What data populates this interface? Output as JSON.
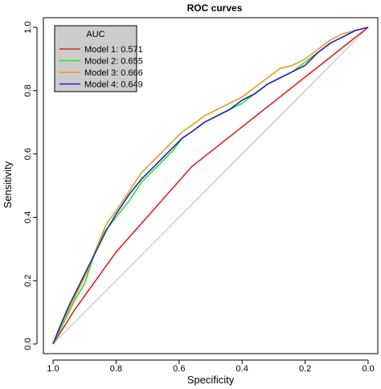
{
  "chart_data": {
    "type": "line",
    "title": "ROC curves",
    "xlabel": "Specificity",
    "ylabel": "Sensitivity",
    "xlim": [
      1.0,
      0.0
    ],
    "ylim": [
      0.0,
      1.0
    ],
    "x_reversed": true,
    "x_ticks": [
      "1.0",
      "0.8",
      "0.6",
      "0.4",
      "0.2",
      "0.0"
    ],
    "y_ticks": [
      "0.0",
      "0.2",
      "0.4",
      "0.6",
      "0.8",
      "1.0"
    ],
    "grid": false,
    "legend": {
      "title": "AUC",
      "placement": "top-left",
      "background": "#cccccc"
    },
    "reference_line": {
      "from": [
        1.0,
        0.0
      ],
      "to": [
        0.0,
        1.0
      ],
      "color": "#bbbbbb"
    },
    "series": [
      {
        "name": "Model 1: 0.571",
        "color": "#dd2222",
        "points": [
          [
            1.0,
            0.0
          ],
          [
            0.93,
            0.11
          ],
          [
            0.8,
            0.29
          ],
          [
            0.56,
            0.56
          ],
          [
            0.0,
            1.0
          ]
        ]
      },
      {
        "name": "Model 2: 0.655",
        "color": "#33dd33",
        "points": [
          [
            1.0,
            0.0
          ],
          [
            0.98,
            0.04
          ],
          [
            0.95,
            0.1
          ],
          [
            0.93,
            0.14
          ],
          [
            0.9,
            0.19
          ],
          [
            0.87,
            0.28
          ],
          [
            0.84,
            0.35
          ],
          [
            0.8,
            0.4
          ],
          [
            0.76,
            0.45
          ],
          [
            0.72,
            0.51
          ],
          [
            0.68,
            0.55
          ],
          [
            0.65,
            0.58
          ],
          [
            0.62,
            0.61
          ],
          [
            0.59,
            0.65
          ],
          [
            0.56,
            0.67
          ],
          [
            0.52,
            0.7
          ],
          [
            0.48,
            0.72
          ],
          [
            0.44,
            0.74
          ],
          [
            0.4,
            0.76
          ],
          [
            0.36,
            0.79
          ],
          [
            0.32,
            0.82
          ],
          [
            0.28,
            0.84
          ],
          [
            0.24,
            0.86
          ],
          [
            0.2,
            0.89
          ],
          [
            0.16,
            0.92
          ],
          [
            0.12,
            0.95
          ],
          [
            0.08,
            0.97
          ],
          [
            0.04,
            0.99
          ],
          [
            0.0,
            1.0
          ]
        ]
      },
      {
        "name": "Model 3: 0.666",
        "color": "#ee9922",
        "points": [
          [
            1.0,
            0.0
          ],
          [
            0.98,
            0.05
          ],
          [
            0.95,
            0.11
          ],
          [
            0.92,
            0.17
          ],
          [
            0.89,
            0.23
          ],
          [
            0.86,
            0.31
          ],
          [
            0.83,
            0.38
          ],
          [
            0.8,
            0.42
          ],
          [
            0.76,
            0.48
          ],
          [
            0.72,
            0.54
          ],
          [
            0.68,
            0.58
          ],
          [
            0.65,
            0.61
          ],
          [
            0.62,
            0.64
          ],
          [
            0.59,
            0.67
          ],
          [
            0.56,
            0.69
          ],
          [
            0.52,
            0.72
          ],
          [
            0.48,
            0.74
          ],
          [
            0.44,
            0.76
          ],
          [
            0.4,
            0.78
          ],
          [
            0.36,
            0.81
          ],
          [
            0.32,
            0.84
          ],
          [
            0.28,
            0.87
          ],
          [
            0.24,
            0.88
          ],
          [
            0.2,
            0.9
          ],
          [
            0.16,
            0.93
          ],
          [
            0.12,
            0.96
          ],
          [
            0.08,
            0.98
          ],
          [
            0.04,
            0.99
          ],
          [
            0.0,
            1.0
          ]
        ]
      },
      {
        "name": "Model 4: 0.649",
        "color": "#2222bb",
        "points": [
          [
            1.0,
            0.0
          ],
          [
            0.98,
            0.05
          ],
          [
            0.95,
            0.12
          ],
          [
            0.92,
            0.18
          ],
          [
            0.89,
            0.24
          ],
          [
            0.86,
            0.3
          ],
          [
            0.83,
            0.36
          ],
          [
            0.8,
            0.41
          ],
          [
            0.76,
            0.47
          ],
          [
            0.72,
            0.52
          ],
          [
            0.68,
            0.56
          ],
          [
            0.65,
            0.59
          ],
          [
            0.62,
            0.62
          ],
          [
            0.59,
            0.65
          ],
          [
            0.56,
            0.67
          ],
          [
            0.52,
            0.7
          ],
          [
            0.48,
            0.72
          ],
          [
            0.44,
            0.74
          ],
          [
            0.4,
            0.77
          ],
          [
            0.36,
            0.79
          ],
          [
            0.32,
            0.82
          ],
          [
            0.28,
            0.84
          ],
          [
            0.24,
            0.86
          ],
          [
            0.2,
            0.88
          ],
          [
            0.16,
            0.92
          ],
          [
            0.12,
            0.95
          ],
          [
            0.08,
            0.97
          ],
          [
            0.04,
            0.99
          ],
          [
            0.0,
            1.0
          ]
        ]
      }
    ]
  }
}
